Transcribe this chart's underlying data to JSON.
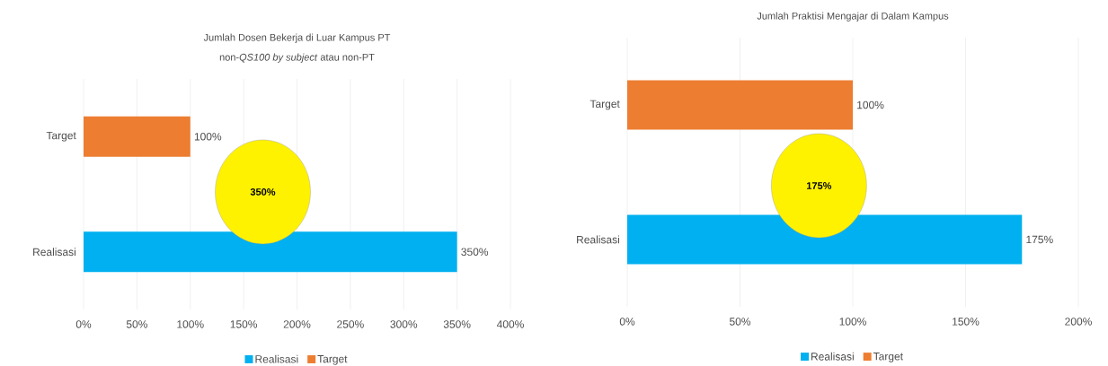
{
  "chart_data": [
    {
      "type": "bar",
      "orientation": "horizontal",
      "title": "Jumlah Dosen Bekerja di Luar Kampus PT",
      "subtitle": "non-*QS100 by subject* atau non-PT",
      "categories": [
        "Target",
        "Realisasi"
      ],
      "series": [
        {
          "name": "Realisasi",
          "color": "#00b0f0",
          "values": [
            null,
            350
          ],
          "value_labels": [
            null,
            "350%"
          ]
        },
        {
          "name": "Target",
          "color": "#ed7d31",
          "values": [
            100,
            null
          ],
          "value_labels": [
            "100%",
            null
          ]
        }
      ],
      "xlim": [
        0,
        400
      ],
      "xticks": [
        {
          "value": 0,
          "label": "0%"
        },
        {
          "value": 50,
          "label": "50%"
        },
        {
          "value": 100,
          "label": "100%"
        },
        {
          "value": 150,
          "label": "150%"
        },
        {
          "value": 200,
          "label": "200%"
        },
        {
          "value": 250,
          "label": "250%"
        },
        {
          "value": 300,
          "label": "300%"
        },
        {
          "value": 350,
          "label": "350%"
        },
        {
          "value": 400,
          "label": "400%"
        }
      ],
      "grid": "x",
      "legend": "bottom",
      "annotations": [
        "350%"
      ]
    },
    {
      "type": "bar",
      "orientation": "horizontal",
      "title": "Jumlah Praktisi Mengajar di Dalam Kampus",
      "categories": [
        "Target",
        "Realisasi"
      ],
      "series": [
        {
          "name": "Realisasi",
          "color": "#00b0f0",
          "values": [
            null,
            175
          ],
          "value_labels": [
            null,
            "175%"
          ]
        },
        {
          "name": "Target",
          "color": "#ed7d31",
          "values": [
            100,
            null
          ],
          "value_labels": [
            "100%",
            null
          ]
        }
      ],
      "xlim": [
        0,
        200
      ],
      "xticks": [
        {
          "value": 0,
          "label": "0%"
        },
        {
          "value": 50,
          "label": "50%"
        },
        {
          "value": 100,
          "label": "100%"
        },
        {
          "value": 150,
          "label": "150%"
        },
        {
          "value": 200,
          "label": "200%"
        }
      ],
      "grid": "x",
      "legend": "bottom",
      "annotations": [
        "175%"
      ]
    }
  ]
}
